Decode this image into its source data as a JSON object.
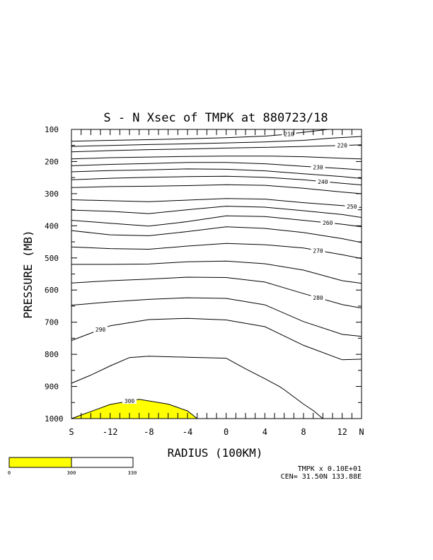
{
  "chart_data": {
    "type": "contour",
    "title": "S - N Xsec of TMPK at 880723/18",
    "xlabel": "RADIUS (100KM)",
    "ylabel": "PRESSURE (MB)",
    "x_ticks": [
      {
        "v": -16,
        "label": "S"
      },
      {
        "v": -12,
        "label": "-12"
      },
      {
        "v": -8,
        "label": "-8"
      },
      {
        "v": -4,
        "label": "-4"
      },
      {
        "v": 0,
        "label": "0"
      },
      {
        "v": 4,
        "label": "4"
      },
      {
        "v": 8,
        "label": "8"
      },
      {
        "v": 12,
        "label": "12"
      },
      {
        "v": 14,
        "label": "N"
      }
    ],
    "xlim": [
      -16,
      14
    ],
    "y_ticks": [
      100,
      200,
      300,
      400,
      500,
      600,
      700,
      800,
      900,
      1000
    ],
    "ylim": [
      100,
      1000
    ],
    "y_scale": "linear",
    "contour_interval": 5,
    "contours": [
      {
        "value": 210,
        "label": "210",
        "label_at": 6.5,
        "points": [
          [
            -16,
            137
          ],
          [
            -12,
            134
          ],
          [
            -8,
            132
          ],
          [
            -4,
            129
          ],
          [
            0,
            126
          ],
          [
            4,
            121
          ],
          [
            6,
            116
          ],
          [
            8,
            109
          ],
          [
            10,
            102
          ],
          [
            10.5,
            100
          ]
        ]
      },
      {
        "value": 215,
        "points": [
          [
            -16,
            153
          ],
          [
            -12,
            150
          ],
          [
            -8,
            147
          ],
          [
            -4,
            145
          ],
          [
            0,
            142
          ],
          [
            4,
            139
          ],
          [
            8,
            134
          ],
          [
            11,
            127
          ],
          [
            14,
            122
          ]
        ]
      },
      {
        "value": 220,
        "label": "220",
        "label_at": 12,
        "points": [
          [
            -16,
            170
          ],
          [
            -12,
            166
          ],
          [
            -8,
            163
          ],
          [
            -4,
            161
          ],
          [
            0,
            158
          ],
          [
            4,
            156
          ],
          [
            8,
            153
          ],
          [
            12,
            150
          ],
          [
            14,
            148
          ]
        ]
      },
      {
        "value": 225,
        "points": [
          [
            -16,
            192
          ],
          [
            -12,
            188
          ],
          [
            -8,
            186
          ],
          [
            -4,
            184
          ],
          [
            0,
            183
          ],
          [
            4,
            183
          ],
          [
            8,
            185
          ],
          [
            12,
            190
          ],
          [
            14,
            192
          ]
        ]
      },
      {
        "value": 230,
        "label": "230",
        "label_at": 9.5,
        "points": [
          [
            -16,
            213
          ],
          [
            -12,
            209
          ],
          [
            -8,
            206
          ],
          [
            -4,
            203
          ],
          [
            0,
            203
          ],
          [
            4,
            207
          ],
          [
            8,
            215
          ],
          [
            12,
            222
          ],
          [
            14,
            226
          ]
        ]
      },
      {
        "value": 235,
        "points": [
          [
            -16,
            232
          ],
          [
            -12,
            228
          ],
          [
            -8,
            226
          ],
          [
            -4,
            223
          ],
          [
            0,
            224
          ],
          [
            4,
            229
          ],
          [
            8,
            238
          ],
          [
            12,
            247
          ],
          [
            14,
            253
          ]
        ]
      },
      {
        "value": 240,
        "label": "240",
        "label_at": 10,
        "points": [
          [
            -16,
            257
          ],
          [
            -12,
            252
          ],
          [
            -8,
            249
          ],
          [
            -4,
            247
          ],
          [
            0,
            246
          ],
          [
            4,
            249
          ],
          [
            8,
            257
          ],
          [
            12,
            268
          ],
          [
            14,
            273
          ]
        ]
      },
      {
        "value": 245,
        "points": [
          [
            -16,
            281
          ],
          [
            -12,
            278
          ],
          [
            -8,
            277
          ],
          [
            -4,
            275
          ],
          [
            0,
            272
          ],
          [
            4,
            274
          ],
          [
            8,
            283
          ],
          [
            12,
            295
          ],
          [
            14,
            300
          ]
        ]
      },
      {
        "value": 250,
        "label": "250",
        "label_at": 13,
        "points": [
          [
            -16,
            319
          ],
          [
            -12,
            322
          ],
          [
            -8,
            325
          ],
          [
            -4,
            320
          ],
          [
            0,
            315
          ],
          [
            4,
            317
          ],
          [
            8,
            328
          ],
          [
            12,
            337
          ],
          [
            14,
            343
          ]
        ]
      },
      {
        "value": 255,
        "points": [
          [
            -16,
            351
          ],
          [
            -12,
            355
          ],
          [
            -8,
            362
          ],
          [
            -4,
            350
          ],
          [
            0,
            339
          ],
          [
            4,
            342
          ],
          [
            8,
            353
          ],
          [
            12,
            365
          ],
          [
            14,
            374
          ]
        ]
      },
      {
        "value": 260,
        "label": "260",
        "label_at": 10.5,
        "points": [
          [
            -16,
            383
          ],
          [
            -12,
            392
          ],
          [
            -8,
            401
          ],
          [
            -4,
            387
          ],
          [
            0,
            369
          ],
          [
            4,
            371
          ],
          [
            8,
            383
          ],
          [
            12,
            395
          ],
          [
            14,
            403
          ]
        ]
      },
      {
        "value": 265,
        "points": [
          [
            -16,
            415
          ],
          [
            -12,
            428
          ],
          [
            -8,
            431
          ],
          [
            -4,
            418
          ],
          [
            0,
            403
          ],
          [
            4,
            408
          ],
          [
            8,
            421
          ],
          [
            12,
            440
          ],
          [
            14,
            452
          ]
        ]
      },
      {
        "value": 270,
        "label": "270",
        "label_at": 9.5,
        "points": [
          [
            -16,
            466
          ],
          [
            -12,
            471
          ],
          [
            -8,
            473
          ],
          [
            -4,
            463
          ],
          [
            0,
            455
          ],
          [
            4,
            459
          ],
          [
            8,
            469
          ],
          [
            12,
            490
          ],
          [
            14,
            502
          ]
        ]
      },
      {
        "value": 275,
        "points": [
          [
            -16,
            520
          ],
          [
            -12,
            520
          ],
          [
            -8,
            519
          ],
          [
            -4,
            512
          ],
          [
            0,
            510
          ],
          [
            4,
            518
          ],
          [
            8,
            538
          ],
          [
            12,
            571
          ],
          [
            14,
            579
          ]
        ]
      },
      {
        "value": 280,
        "label": "280",
        "label_at": 9.5,
        "points": [
          [
            -16,
            578
          ],
          [
            -12,
            571
          ],
          [
            -8,
            566
          ],
          [
            -4,
            560
          ],
          [
            0,
            561
          ],
          [
            4,
            575
          ],
          [
            8,
            611
          ],
          [
            12,
            645
          ],
          [
            14,
            656
          ]
        ]
      },
      {
        "value": 285,
        "points": [
          [
            -16,
            647
          ],
          [
            -12,
            637
          ],
          [
            -8,
            629
          ],
          [
            -4,
            624
          ],
          [
            0,
            626
          ],
          [
            4,
            646
          ],
          [
            8,
            698
          ],
          [
            12,
            738
          ],
          [
            14,
            744
          ]
        ]
      },
      {
        "value": 290,
        "label": "290",
        "label_at": -13,
        "points": [
          [
            -16,
            757
          ],
          [
            -12,
            711
          ],
          [
            -8,
            692
          ],
          [
            -4,
            688
          ],
          [
            0,
            693
          ],
          [
            4,
            714
          ],
          [
            8,
            772
          ],
          [
            12,
            817
          ],
          [
            14,
            815
          ]
        ]
      },
      {
        "value": 295,
        "points": [
          [
            -16,
            890
          ],
          [
            -14,
            865
          ],
          [
            -12,
            836
          ],
          [
            -10,
            810
          ],
          [
            -8,
            806
          ],
          [
            -4,
            809
          ],
          [
            0,
            812
          ],
          [
            2,
            845
          ],
          [
            4,
            876
          ],
          [
            5.5,
            900
          ],
          [
            6,
            910
          ],
          [
            8,
            955
          ],
          [
            9,
            975
          ],
          [
            10,
            1000
          ]
        ]
      },
      {
        "value": 300,
        "label": "300",
        "label_at": -10,
        "points": [
          [
            -16,
            1000
          ],
          [
            -12,
            956
          ],
          [
            -9,
            940
          ],
          [
            -6,
            955
          ],
          [
            -4,
            976
          ],
          [
            -3,
            1000
          ]
        ]
      }
    ],
    "shaded": [
      {
        "level": ">=300",
        "color": "#ffff00"
      }
    ],
    "colorbar": {
      "labels": [
        "0",
        "300",
        "330"
      ],
      "colors": [
        "#ffff00",
        "#ffffff"
      ]
    },
    "footer": {
      "scale_note": "TMPK x  0.10E+01",
      "center": "CEN= 31.50N  133.88E"
    }
  }
}
